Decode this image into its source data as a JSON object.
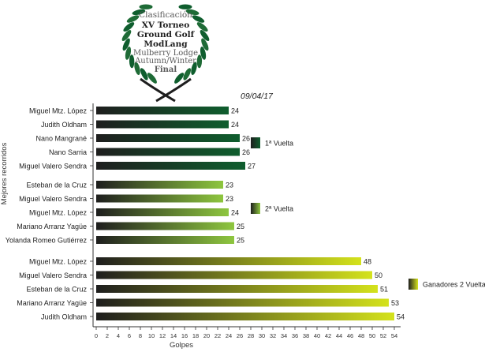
{
  "header": {
    "title_lines": [
      "Clasificación",
      "XV Torneo",
      "Ground Golf",
      "ModLang",
      "Mulberry Lodge",
      "Autumn/Winter",
      "Final"
    ],
    "date": "09/04/17"
  },
  "chart_data": {
    "type": "bar",
    "orientation": "horizontal",
    "xlabel": "Golpes",
    "ylabel": "Mejores recorridos",
    "xlim": [
      0,
      54
    ],
    "xticks": [
      0,
      2,
      4,
      6,
      8,
      10,
      12,
      14,
      16,
      18,
      20,
      22,
      24,
      26,
      28,
      30,
      32,
      34,
      36,
      38,
      40,
      42,
      44,
      46,
      48,
      50,
      52,
      54
    ],
    "grid": false,
    "groups": [
      {
        "legend": "1ª Vuelta",
        "colors": [
          "#1e1e1e",
          "#0f5e2e"
        ],
        "bars": [
          {
            "name": "Miguel Mtz. López",
            "value": 24
          },
          {
            "name": "Judith Oldham",
            "value": 24
          },
          {
            "name": "Nano Mangrané",
            "value": 26
          },
          {
            "name": "Nano Sarria",
            "value": 26
          },
          {
            "name": "Miguel Valero Sendra",
            "value": 27
          }
        ]
      },
      {
        "legend": "2ª Vuelta",
        "colors": [
          "#1e1e1e",
          "#8ec63f"
        ],
        "bars": [
          {
            "name": "Esteban de la Cruz",
            "value": 23
          },
          {
            "name": "Miguel Valero Sendra",
            "value": 23
          },
          {
            "name": "Miguel Mtz. López",
            "value": 24
          },
          {
            "name": "Mariano Arranz Yagüe",
            "value": 25
          },
          {
            "name": "Yolanda Romeo Gutiérrez",
            "value": 25
          }
        ]
      },
      {
        "legend": "Ganadores 2 Vueltas",
        "colors": [
          "#1e1e1e",
          "#d4e21c"
        ],
        "bars": [
          {
            "name": "Miguel Mtz. López",
            "value": 48
          },
          {
            "name": "Miguel Valero Sendra",
            "value": 50
          },
          {
            "name": "Esteban de la Cruz",
            "value": 51
          },
          {
            "name": "Mariano Arranz Yagüe",
            "value": 53
          },
          {
            "name": "Judith Oldham",
            "value": 54
          }
        ]
      }
    ]
  }
}
